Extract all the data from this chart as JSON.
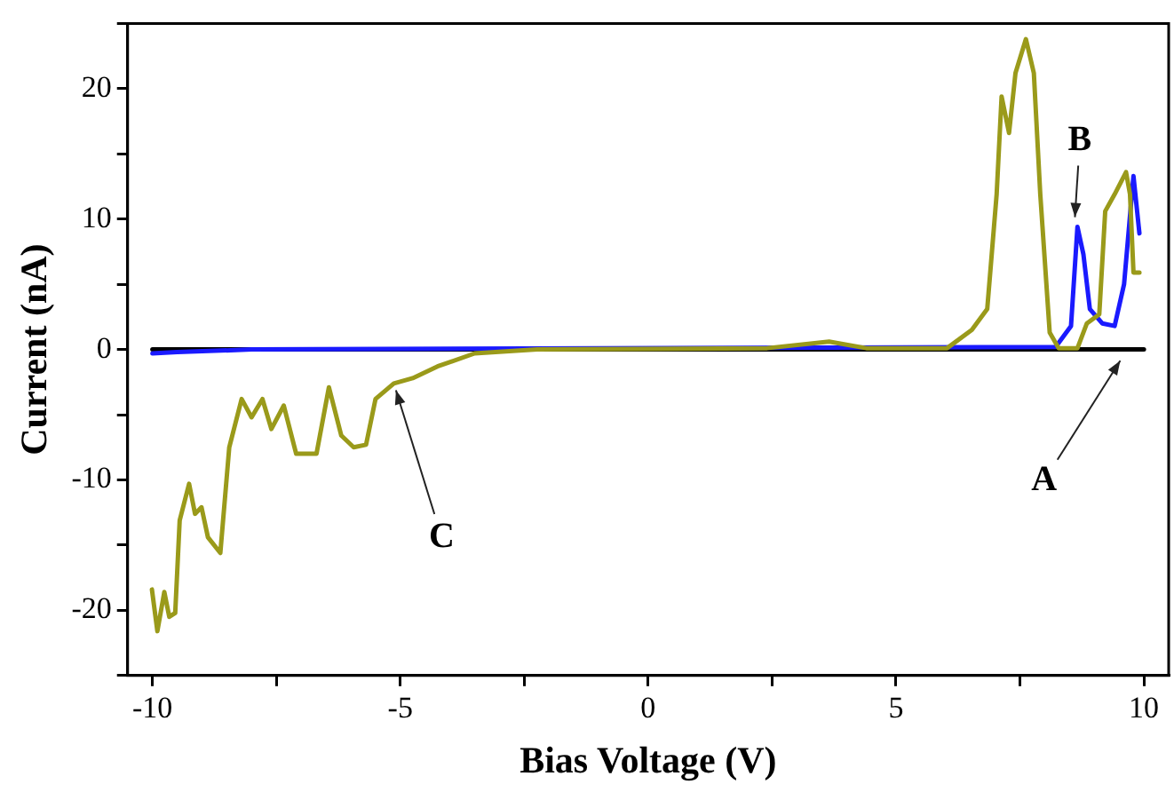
{
  "chart_data": {
    "type": "line",
    "xlabel": "Bias Voltage (V)",
    "ylabel": "Current (nA)",
    "xlim": [
      -10.5,
      10.5
    ],
    "ylim": [
      -25,
      25
    ],
    "xticks": [
      -10,
      {
        "value": -7.5,
        "label": null
      },
      -5,
      {
        "value": -2.5,
        "label": null
      },
      0,
      {
        "value": 2.5,
        "label": null
      },
      5,
      {
        "value": 7.5,
        "label": null
      },
      10
    ],
    "yticks": [
      {
        "value": -25,
        "label": null
      },
      -20,
      {
        "value": -15,
        "label": null
      },
      -10,
      {
        "value": -5,
        "label": null
      },
      0,
      {
        "value": 5,
        "label": null
      },
      10,
      {
        "value": 15,
        "label": null
      },
      20,
      {
        "value": 25,
        "label": null
      }
    ],
    "grid": false,
    "legend": false,
    "marker": "none",
    "line_style": "solid",
    "series": [
      {
        "color": "#9a9a1a",
        "x": [
          -10.01,
          -9.9,
          -9.76,
          -9.66,
          -9.54,
          -9.45,
          -9.26,
          -9.14,
          -9.01,
          -8.88,
          -8.63,
          -8.45,
          -8.2,
          -8.0,
          -7.78,
          -7.6,
          -7.35,
          -7.1,
          -6.69,
          -6.44,
          -6.19,
          -5.94,
          -5.69,
          -5.5,
          -5.13,
          -4.75,
          -4.25,
          -3.5,
          -2.24,
          2.4,
          3.65,
          4.4,
          6.03,
          6.53,
          6.84,
          7.03,
          7.13,
          7.28,
          7.41,
          7.62,
          7.78,
          7.91,
          8.1,
          8.28,
          8.66,
          8.85,
          9.1,
          9.22,
          9.41,
          9.64,
          9.72,
          9.79,
          9.91
        ],
        "values": [
          -18.4,
          -21.6,
          -18.6,
          -20.5,
          -20.2,
          -13.1,
          -10.3,
          -12.6,
          -12.1,
          -14.4,
          -15.6,
          -7.5,
          -3.8,
          -5.2,
          -3.8,
          -6.1,
          -4.3,
          -8.0,
          -8.0,
          -2.9,
          -6.6,
          -7.5,
          -7.3,
          -3.8,
          -2.6,
          -2.2,
          -1.3,
          -0.3,
          0,
          0.1,
          0.6,
          0.1,
          0.1,
          1.5,
          3.1,
          11.9,
          19.4,
          16.6,
          21.2,
          23.8,
          21.2,
          11.9,
          1.3,
          0.1,
          0.1,
          2.0,
          2.7,
          10.6,
          11.9,
          13.6,
          11.9,
          5.9,
          5.9
        ]
      },
      {
        "color": "#1a1aff",
        "x": [
          -10,
          -9.5,
          -8,
          8.22,
          8.53,
          8.66,
          8.78,
          8.91,
          9.16,
          9.41,
          9.6,
          9.79,
          9.91
        ],
        "values": [
          -0.3,
          -0.2,
          0,
          0.2,
          1.8,
          9.4,
          7.3,
          3.1,
          2.0,
          1.8,
          5.0,
          13.3,
          8.9
        ]
      },
      {
        "color": "#000000",
        "x": [
          -10,
          10
        ],
        "values": [
          0,
          0
        ]
      }
    ],
    "annotations": [
      {
        "text": "C",
        "x": -5.13,
        "y": -2.6
      },
      {
        "text": "B",
        "x": 8.6,
        "y": 9.6
      },
      {
        "text": "A",
        "x": 9.6,
        "y": -0.4
      }
    ]
  }
}
